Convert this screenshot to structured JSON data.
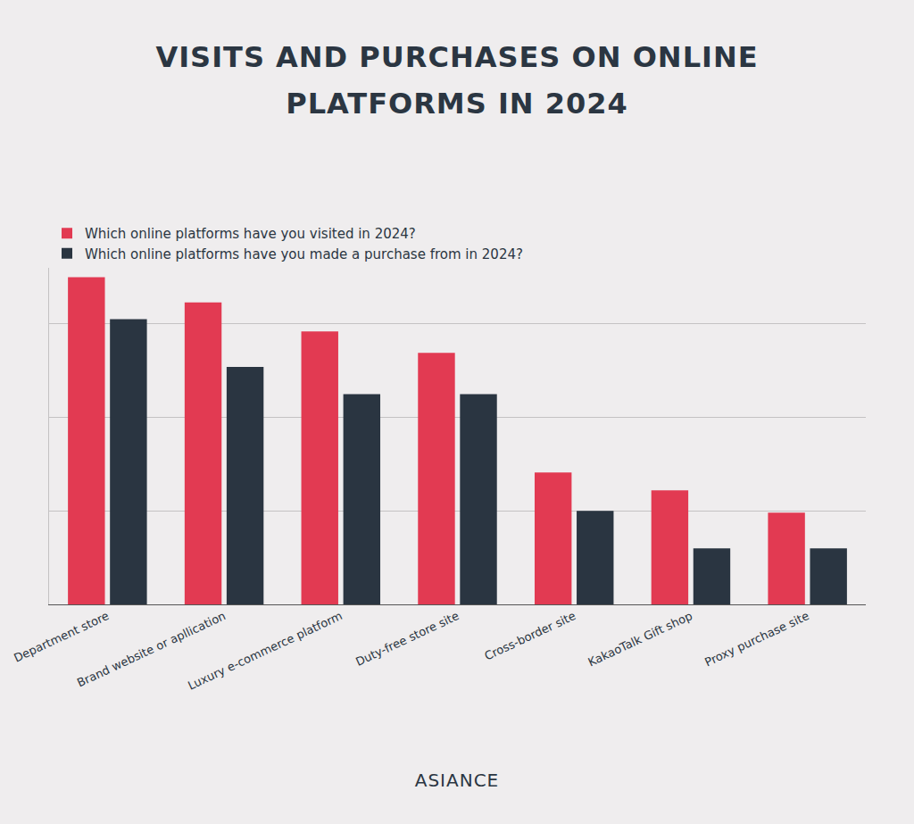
{
  "chart_data": {
    "type": "bar",
    "title": "VISITS AND PURCHASES ON ONLINE PLATFORMS IN 2024",
    "categories": [
      "Department store",
      "Brand website or apllication",
      "Luxury e-commerce platform",
      "Duty-free store site",
      "Cross-border site",
      "KakaoTalk Gift shop",
      "Proxy purchase site"
    ],
    "series": [
      {
        "name": "Which online platforms have you visited in 2024?",
        "color": "#e23a52",
        "values": [
          35.0,
          32.3,
          29.2,
          26.9,
          14.1,
          12.2,
          9.8
        ]
      },
      {
        "name": "Which online platforms have you made a purchase from in 2024?",
        "color": "#2a3541",
        "values": [
          30.5,
          25.4,
          22.5,
          22.5,
          10.0,
          6.0,
          6.0
        ]
      }
    ],
    "ylim": [
      0,
      36
    ],
    "yticks": [
      0,
      10,
      20,
      30
    ],
    "grid": true,
    "legend": "top-left",
    "tick_labels": "x"
  },
  "footer": "ASIANCE"
}
